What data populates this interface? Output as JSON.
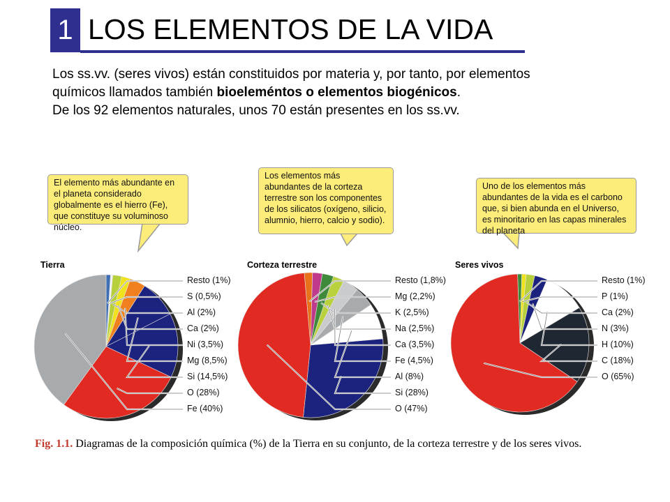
{
  "header": {
    "number": "1",
    "title": "LOS ELEMENTOS DE LA VIDA"
  },
  "intro": {
    "p1_a": "Los ss.vv. (seres vivos) están constituidos por materia y, por tanto, por elementos químicos llamados también ",
    "p1_bold": "bioeleméntos o elementos biogénicos",
    "p1_end": ".",
    "p2": "De los 92 elementos naturales, unos 70 están presentes en los ss.vv."
  },
  "callouts": [
    "El elemento más abundante en el planeta considerado globalmente es el hierro (Fe), que constituye su voluminoso núcleo.",
    "Los elementos más abundantes de la corteza terrestre son los componentes de los silicatos (oxígeno, silicio, alumnio, hierro, calcio y sodio).",
    "Uno de los elementos más abundantes de la vida es el carbono que, si bien abunda en el Universo, es minoritario en las capas minerales del planeta"
  ],
  "caption": {
    "label": "Fig. 1.1.",
    "text": " Diagramas de la composición química (%) de la Tierra en su conjunto, de la corteza terrestre y de los seres vivos."
  },
  "chart_data": [
    {
      "type": "pie",
      "title": "Tierra",
      "labels": [
        "Resto (1%)",
        "S (0,5%)",
        "Al (2%)",
        "Ca (2%)",
        "Ni (3,5%)",
        "Mg (8,5%)",
        "Si (14,5%)",
        "O (28%)",
        "Fe (40%)"
      ],
      "categories": [
        "Resto",
        "S",
        "Al",
        "Ca",
        "Ni",
        "Mg",
        "Si",
        "O",
        "Fe"
      ],
      "values": [
        1,
        0.5,
        2,
        2,
        3.5,
        8.5,
        14.5,
        28,
        40
      ],
      "colors": [
        "#3f6fb3",
        "#f4f4f4",
        "#b7cf3a",
        "#f0e31b",
        "#f07f1e",
        "#1c237e",
        "#1c237e",
        "#e02a22",
        "#a7abae"
      ]
    },
    {
      "type": "pie",
      "title": "Corteza terrestre",
      "labels": [
        "Resto (1,8%)",
        "Mg (2,2%)",
        "K (2,5%)",
        "Na (2,5%)",
        "Ca (3,5%)",
        "Fe (4,5%)",
        "Al (8%)",
        "Si (28%)",
        "O (47%)"
      ],
      "categories": [
        "Resto",
        "Mg",
        "K",
        "Na",
        "Ca",
        "Fe",
        "Al",
        "Si",
        "O"
      ],
      "values": [
        1.8,
        2.2,
        2.5,
        2.5,
        3.5,
        4.5,
        8,
        28,
        47
      ],
      "colors": [
        "#e8721c",
        "#c03a8c",
        "#3e8a3a",
        "#b9d13c",
        "#c9cbcd",
        "#a7abae",
        "#ffffff",
        "#1c237e",
        "#e02a22"
      ]
    },
    {
      "type": "pie",
      "title": "Seres vivos",
      "labels": [
        "Resto (1%)",
        "P (1%)",
        "Ca (2%)",
        "N (3%)",
        "H (10%)",
        "C (18%)",
        "O (65%)"
      ],
      "categories": [
        "Resto",
        "P",
        "Ca",
        "N",
        "H",
        "C",
        "O"
      ],
      "values": [
        1,
        1,
        2,
        3,
        10,
        18,
        65
      ],
      "colors": [
        "#3e8a3a",
        "#f0e31b",
        "#b7cf3a",
        "#1c237e",
        "#ffffff",
        "#1f2733",
        "#e02a22"
      ]
    }
  ]
}
